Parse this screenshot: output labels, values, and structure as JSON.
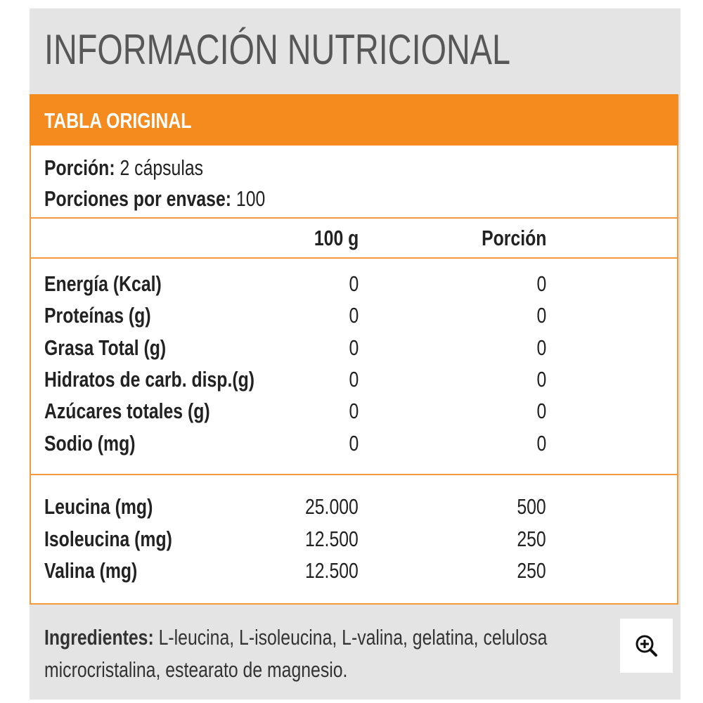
{
  "title": "INFORMACIÓN NUTRICIONAL",
  "table": {
    "heading": "TABLA ORIGINAL",
    "serving": {
      "label": "Porción:",
      "value": "2 cápsulas"
    },
    "servings_per_container": {
      "label": "Porciones por envase:",
      "value": "100"
    },
    "columns": [
      "100 g",
      "Porción"
    ],
    "rows": [
      [
        "Energía (Kcal)",
        "0",
        "0"
      ],
      [
        "Proteínas (g)",
        "0",
        "0"
      ],
      [
        "Grasa Total (g)",
        "0",
        "0"
      ],
      [
        "Hidratos de carb. disp.(g)",
        "0",
        "0"
      ],
      [
        "Azúcares totales (g)",
        "0",
        "0"
      ],
      [
        "Sodio (mg)",
        "0",
        "0"
      ]
    ],
    "amino_rows": [
      [
        "Leucina (mg)",
        "25.000",
        "500"
      ],
      [
        "Isoleucina (mg)",
        "12.500",
        "250"
      ],
      [
        "Valina (mg)",
        "12.500",
        "250"
      ]
    ]
  },
  "ingredients": {
    "label": "Ingredientes:",
    "text": "L-leucina, L-isoleucina, L-valina, gelatina,  celulosa microcristalina, estearato de magnesio."
  }
}
